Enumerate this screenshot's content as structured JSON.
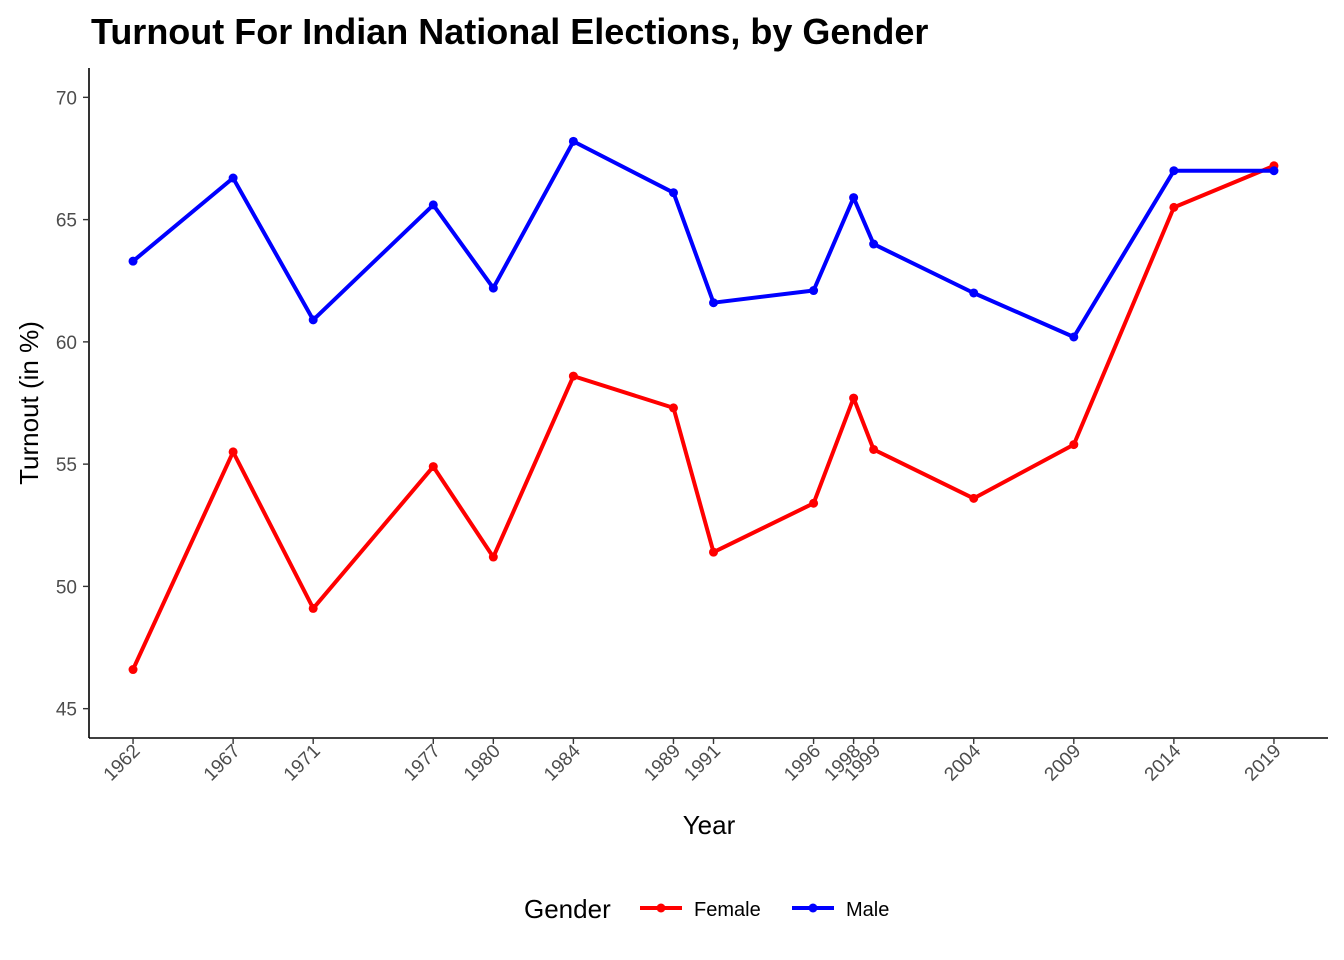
{
  "chart_data": {
    "type": "line",
    "title": "Turnout For Indian National Elections, by Gender",
    "xlabel": "Year",
    "ylabel": "Turnout (in %)",
    "x": [
      1962,
      1967,
      1971,
      1977,
      1980,
      1984,
      1989,
      1991,
      1996,
      1998,
      1999,
      2004,
      2009,
      2014,
      2019
    ],
    "x_tick_labels": [
      "1962",
      "1967",
      "1971",
      "1977",
      "1980",
      "1984",
      "1989",
      "1991",
      "1996",
      "1998",
      "1999",
      "2004",
      "2009",
      "2014",
      "2019"
    ],
    "y_ticks": [
      45,
      50,
      55,
      60,
      65,
      70
    ],
    "y_tick_labels": [
      "45",
      "50",
      "55",
      "60",
      "65",
      "70"
    ],
    "xlim": [
      1959.8,
      2021.7
    ],
    "ylim": [
      43.8,
      71.2
    ],
    "grid": false,
    "legend": {
      "title": "Gender",
      "placement": "bottom"
    },
    "series": [
      {
        "name": "Female",
        "color": "#ff0000",
        "values": [
          46.6,
          55.5,
          49.1,
          54.9,
          51.2,
          58.6,
          57.3,
          51.4,
          53.4,
          57.7,
          55.6,
          53.6,
          55.8,
          65.5,
          67.2
        ]
      },
      {
        "name": "Male",
        "color": "#0000ff",
        "values": [
          63.3,
          66.7,
          60.9,
          65.6,
          62.2,
          68.2,
          66.1,
          61.6,
          62.1,
          65.9,
          64.0,
          62.0,
          60.2,
          67.0,
          67.0
        ]
      }
    ]
  }
}
